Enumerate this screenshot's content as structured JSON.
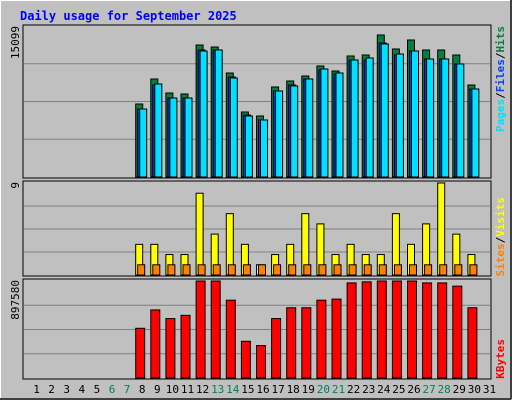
{
  "chart_data": [
    {
      "type": "bar",
      "title": "Daily usage for September 2025",
      "categories": [
        "1",
        "2",
        "3",
        "4",
        "5",
        "6",
        "7",
        "8",
        "9",
        "10",
        "11",
        "12",
        "13",
        "14",
        "15",
        "16",
        "17",
        "18",
        "19",
        "20",
        "21",
        "22",
        "23",
        "24",
        "25",
        "26",
        "27",
        "28",
        "29",
        "30",
        "31"
      ],
      "weekend_days": [
        6,
        7,
        13,
        14,
        20,
        21,
        27,
        28
      ],
      "ymax_label": "15099",
      "ylim": [
        0,
        15099
      ],
      "series": [
        {
          "name": "Hits",
          "color": "#008040",
          "values": [
            0,
            0,
            0,
            0,
            0,
            0,
            0,
            7300,
            9800,
            8400,
            8300,
            13200,
            13000,
            10400,
            6500,
            6100,
            9000,
            9600,
            10100,
            11100,
            10600,
            12100,
            12200,
            14200,
            12800,
            13700,
            12700,
            12700,
            12200,
            9200,
            0
          ]
        },
        {
          "name": "Files",
          "color": "#0040ff",
          "values": [
            0,
            0,
            0,
            0,
            0,
            0,
            0,
            6800,
            9200,
            7900,
            7900,
            12700,
            12700,
            10000,
            6200,
            5700,
            8600,
            9200,
            9800,
            10700,
            10300,
            11700,
            11700,
            13400,
            12200,
            12600,
            11800,
            11800,
            11300,
            8800,
            0
          ]
        },
        {
          "name": "Pages",
          "color": "#00e0ff",
          "values": [
            0,
            0,
            0,
            0,
            0,
            0,
            0,
            6800,
            9300,
            7900,
            7900,
            12600,
            12700,
            9900,
            6100,
            5700,
            8600,
            9100,
            9800,
            10800,
            10400,
            11700,
            11900,
            13300,
            12300,
            12600,
            11800,
            11800,
            11300,
            8800,
            0
          ]
        }
      ],
      "legend_order": [
        "Pages",
        "Files",
        "Hits"
      ]
    },
    {
      "type": "bar",
      "ymax_label": "9",
      "ylim": [
        0,
        9
      ],
      "series": [
        {
          "name": "Visits",
          "color": "#ffff00",
          "values": [
            0,
            0,
            0,
            0,
            0,
            0,
            0,
            3,
            3,
            2,
            2,
            8,
            4,
            6,
            3,
            1,
            2,
            3,
            6,
            5,
            2,
            3,
            2,
            2,
            6,
            3,
            5,
            9,
            4,
            2,
            0
          ]
        },
        {
          "name": "Sites",
          "color": "#ff8000",
          "values": [
            0,
            0,
            0,
            0,
            0,
            0,
            0,
            1,
            1,
            1,
            1,
            1,
            1,
            1,
            1,
            1,
            1,
            1,
            1,
            1,
            1,
            1,
            1,
            1,
            1,
            1,
            1,
            1,
            1,
            1,
            0
          ]
        }
      ],
      "legend_order": [
        "Sites",
        "Visits"
      ]
    },
    {
      "type": "bar",
      "ymax_label": "897580",
      "ylim": [
        0,
        897580
      ],
      "series": [
        {
          "name": "KBytes",
          "color": "#ff0000",
          "values": [
            0,
            0,
            0,
            0,
            0,
            0,
            0,
            460000,
            630000,
            550000,
            580000,
            920000,
            920000,
            720000,
            340000,
            300000,
            550000,
            650000,
            650000,
            720000,
            730000,
            880000,
            890000,
            920000,
            910000,
            910000,
            880000,
            880000,
            850000,
            650000,
            0
          ]
        }
      ],
      "legend_order": [
        "KBytes"
      ]
    }
  ],
  "colors": {
    "title": "#0000ff",
    "weekday_label": "#000000",
    "weekend_label": "#00805c",
    "panel_bg": "#c0c0c0",
    "grid": "#808080"
  }
}
